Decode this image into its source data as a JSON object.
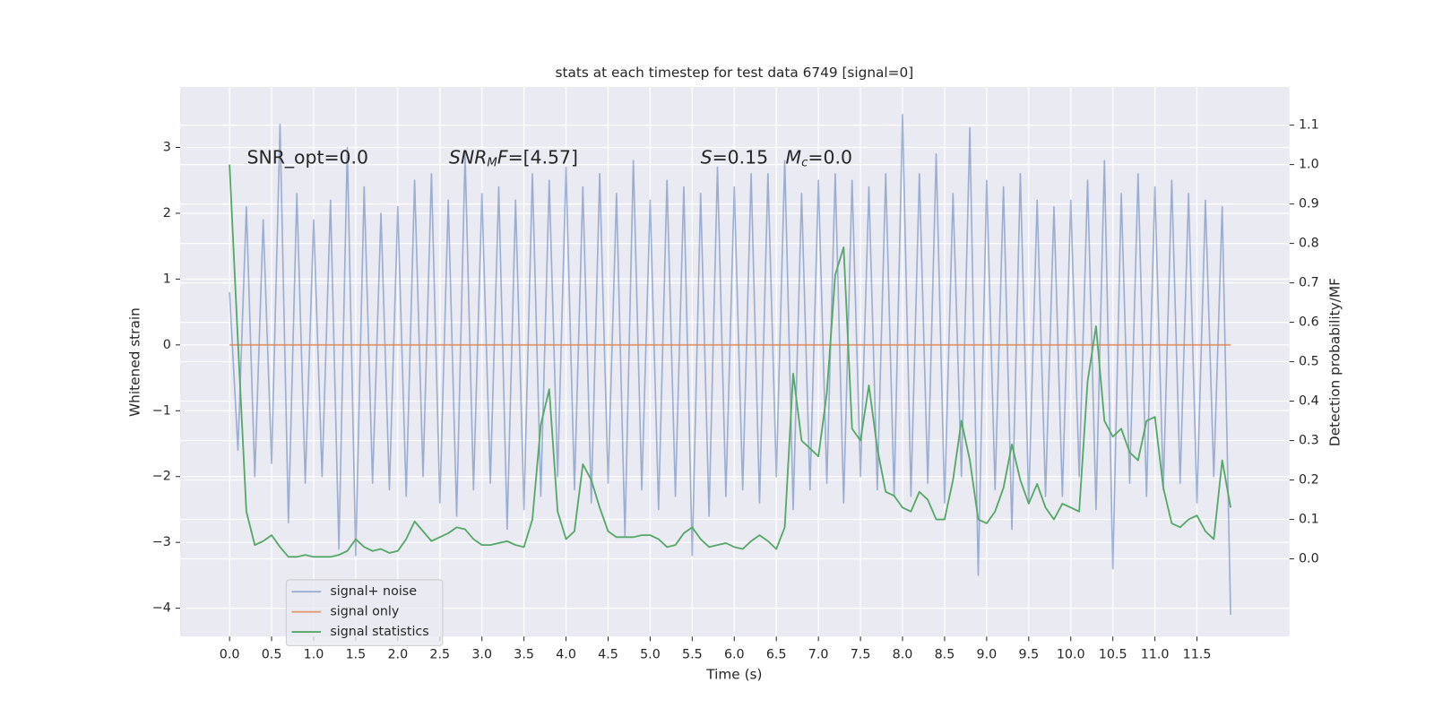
{
  "chart_data": {
    "type": "line",
    "title": "stats at each timestep for test data 6749 [signal=0]",
    "xlabel": "Time (s)",
    "ylabel": "Whitened strain",
    "y2label": "Detection probability/MF",
    "grid": true,
    "legend": "lower left",
    "annotations": [
      [
        {
          "text": "SNR_opt=0.0",
          "style": "normal"
        }
      ],
      [
        {
          "text": "SNR",
          "style": "italic"
        },
        {
          "text": "M",
          "style": "sub"
        },
        {
          "text": "F",
          "style": "italic"
        },
        {
          "text": "=[4.57]",
          "style": "normal"
        }
      ],
      [
        {
          "text": "S",
          "style": "italic"
        },
        {
          "text": "=0.15   ",
          "style": "normal"
        },
        {
          "text": "M",
          "style": "italic"
        },
        {
          "text": "c",
          "style": "sub"
        },
        {
          "text": "=0.0",
          "style": "normal"
        }
      ]
    ],
    "xlim": [
      -0.587,
      12.6
    ],
    "ylim": [
      -4.43,
      3.92
    ],
    "y2lim": [
      -0.197,
      1.197
    ],
    "xticks": [
      {
        "value": 0,
        "label": "0.0"
      },
      {
        "value": 0.5,
        "label": "0.5"
      },
      {
        "value": 1,
        "label": "1.0"
      },
      {
        "value": 1.5,
        "label": "1.5"
      },
      {
        "value": 2,
        "label": "2.0"
      },
      {
        "value": 2.5,
        "label": "2.5"
      },
      {
        "value": 3,
        "label": "3.0"
      },
      {
        "value": 3.5,
        "label": "3.5"
      },
      {
        "value": 4,
        "label": "4.0"
      },
      {
        "value": 4.5,
        "label": "4.5"
      },
      {
        "value": 5,
        "label": "5.0"
      },
      {
        "value": 5.5,
        "label": "5.5"
      },
      {
        "value": 6,
        "label": "6.0"
      },
      {
        "value": 6.5,
        "label": "6.5"
      },
      {
        "value": 7,
        "label": "7.0"
      },
      {
        "value": 7.5,
        "label": "7.5"
      },
      {
        "value": 8,
        "label": "8.0"
      },
      {
        "value": 8.5,
        "label": "8.5"
      },
      {
        "value": 9,
        "label": "9.0"
      },
      {
        "value": 9.5,
        "label": "9.5"
      },
      {
        "value": 10,
        "label": "10.0"
      },
      {
        "value": 10.5,
        "label": "10.5"
      },
      {
        "value": 11,
        "label": "11.0"
      },
      {
        "value": 11.5,
        "label": "11.5"
      }
    ],
    "yticks": [
      {
        "value": -4,
        "label": "−4"
      },
      {
        "value": -3,
        "label": "−3"
      },
      {
        "value": -2,
        "label": "−2"
      },
      {
        "value": -1,
        "label": "−1"
      },
      0,
      1,
      2,
      3
    ],
    "y2ticks": [
      {
        "value": 0,
        "label": "0.0"
      },
      {
        "value": 0.1,
        "label": "0.1"
      },
      {
        "value": 0.2,
        "label": "0.2"
      },
      {
        "value": 0.3,
        "label": "0.3"
      },
      {
        "value": 0.4,
        "label": "0.4"
      },
      {
        "value": 0.5,
        "label": "0.5"
      },
      {
        "value": 0.6,
        "label": "0.6"
      },
      {
        "value": 0.7,
        "label": "0.7"
      },
      {
        "value": 0.8,
        "label": "0.8"
      },
      {
        "value": 0.9,
        "label": "0.9"
      },
      {
        "value": 1,
        "label": "1.0"
      },
      {
        "value": 1.1,
        "label": "1.1"
      }
    ],
    "x": [
      0,
      0.1,
      0.2,
      0.3,
      0.4,
      0.5,
      0.6,
      0.7,
      0.8,
      0.9,
      1,
      1.1,
      1.2,
      1.3,
      1.4,
      1.5,
      1.6,
      1.7,
      1.8,
      1.9,
      2,
      2.1,
      2.2,
      2.3,
      2.4,
      2.5,
      2.6,
      2.7,
      2.8,
      2.9,
      3,
      3.1,
      3.2,
      3.3,
      3.4,
      3.5,
      3.6,
      3.7,
      3.8,
      3.9,
      4,
      4.1,
      4.2,
      4.3,
      4.4,
      4.5,
      4.6,
      4.7,
      4.8,
      4.9,
      5,
      5.1,
      5.2,
      5.3,
      5.4,
      5.5,
      5.6,
      5.7,
      5.8,
      5.9,
      6,
      6.1,
      6.2,
      6.3,
      6.4,
      6.5,
      6.6,
      6.7,
      6.8,
      6.9,
      7,
      7.1,
      7.2,
      7.3,
      7.4,
      7.5,
      7.6,
      7.7,
      7.8,
      7.9,
      8,
      8.1,
      8.2,
      8.3,
      8.4,
      8.5,
      8.6,
      8.7,
      8.8,
      8.9,
      9,
      9.1,
      9.2,
      9.3,
      9.4,
      9.5,
      9.6,
      9.7,
      9.8,
      9.9,
      10,
      10.1,
      10.2,
      10.3,
      10.4,
      10.5,
      10.6,
      10.7,
      10.8,
      10.9,
      11,
      11.1,
      11.2,
      11.3,
      11.4,
      11.5,
      11.6,
      11.7,
      11.8,
      11.9
    ],
    "series": [
      {
        "name": "signal+ noise",
        "color": "#4c72b0",
        "alpha": 0.5,
        "values": [
          0.8,
          -1.6,
          2.1,
          -2.0,
          1.9,
          -1.8,
          3.35,
          -2.7,
          2.3,
          -2.1,
          1.9,
          -2.0,
          2.2,
          -3.1,
          3.0,
          -3.2,
          2.4,
          -2.1,
          2.0,
          -2.2,
          2.1,
          -2.3,
          2.5,
          -2.0,
          2.6,
          -2.4,
          2.2,
          -2.6,
          2.9,
          -2.2,
          2.3,
          -2.1,
          2.4,
          -2.8,
          2.2,
          -2.5,
          2.6,
          -2.3,
          2.5,
          -2.0,
          2.7,
          -2.2,
          2.4,
          -2.4,
          2.6,
          -2.1,
          2.3,
          -2.9,
          2.8,
          -2.2,
          2.2,
          -2.5,
          2.5,
          -2.3,
          2.4,
          -3.2,
          2.3,
          -2.6,
          2.7,
          -2.3,
          2.4,
          -2.2,
          2.6,
          -2.4,
          2.6,
          -2.0,
          2.8,
          -2.5,
          2.3,
          -2.2,
          2.5,
          -2.1,
          2.6,
          -2.4,
          2.5,
          -2.0,
          2.4,
          -2.2,
          2.6,
          -2.3,
          3.5,
          -2.3,
          2.6,
          -2.1,
          2.9,
          -2.4,
          2.3,
          -2.0,
          3.3,
          -3.5,
          2.5,
          -2.2,
          2.4,
          -2.8,
          2.6,
          -2.4,
          2.2,
          -2.3,
          2.1,
          -2.3,
          2.2,
          -2.0,
          2.5,
          -2.5,
          2.8,
          -3.4,
          2.3,
          -2.1,
          2.6,
          -2.3,
          2.4,
          -2.2,
          2.5,
          -2.1,
          2.3,
          -2.4,
          2.2,
          -2.0,
          2.1,
          -4.1
        ]
      },
      {
        "name": "signal only",
        "color": "#dd8452",
        "alpha": 0.8,
        "values": [
          0,
          0,
          0,
          0,
          0,
          0,
          0,
          0,
          0,
          0,
          0,
          0,
          0,
          0,
          0,
          0,
          0,
          0,
          0,
          0,
          0,
          0,
          0,
          0,
          0,
          0,
          0,
          0,
          0,
          0,
          0,
          0,
          0,
          0,
          0,
          0,
          0,
          0,
          0,
          0,
          0,
          0,
          0,
          0,
          0,
          0,
          0,
          0,
          0,
          0,
          0,
          0,
          0,
          0,
          0,
          0,
          0,
          0,
          0,
          0,
          0,
          0,
          0,
          0,
          0,
          0,
          0,
          0,
          0,
          0,
          0,
          0,
          0,
          0,
          0,
          0,
          0,
          0,
          0,
          0,
          0,
          0,
          0,
          0,
          0,
          0,
          0,
          0,
          0,
          0,
          0,
          0,
          0,
          0,
          0,
          0,
          0,
          0,
          0,
          0,
          0,
          0,
          0,
          0,
          0,
          0,
          0,
          0,
          0,
          0,
          0,
          0,
          0,
          0,
          0,
          0,
          0,
          0,
          0,
          0
        ]
      },
      {
        "name": "signal statistics",
        "color": "#55a868",
        "alpha": 1,
        "axis": "y2",
        "values": [
          1.0,
          0.55,
          0.12,
          0.035,
          0.045,
          0.06,
          0.03,
          0.005,
          0.005,
          0.01,
          0.005,
          0.005,
          0.005,
          0.01,
          0.02,
          0.05,
          0.03,
          0.02,
          0.025,
          0.015,
          0.02,
          0.05,
          0.095,
          0.07,
          0.045,
          0.055,
          0.065,
          0.08,
          0.075,
          0.05,
          0.035,
          0.035,
          0.04,
          0.045,
          0.035,
          0.03,
          0.1,
          0.34,
          0.43,
          0.12,
          0.05,
          0.07,
          0.24,
          0.2,
          0.13,
          0.07,
          0.055,
          0.055,
          0.055,
          0.06,
          0.06,
          0.05,
          0.03,
          0.035,
          0.065,
          0.08,
          0.05,
          0.03,
          0.035,
          0.04,
          0.03,
          0.025,
          0.045,
          0.06,
          0.045,
          0.025,
          0.08,
          0.47,
          0.3,
          0.28,
          0.26,
          0.42,
          0.72,
          0.79,
          0.33,
          0.3,
          0.44,
          0.28,
          0.17,
          0.16,
          0.13,
          0.12,
          0.17,
          0.15,
          0.1,
          0.1,
          0.2,
          0.35,
          0.25,
          0.1,
          0.09,
          0.12,
          0.18,
          0.29,
          0.2,
          0.14,
          0.19,
          0.13,
          0.1,
          0.14,
          0.13,
          0.12,
          0.45,
          0.59,
          0.35,
          0.31,
          0.33,
          0.27,
          0.25,
          0.35,
          0.36,
          0.18,
          0.09,
          0.08,
          0.1,
          0.11,
          0.07,
          0.05,
          0.25,
          0.13
        ]
      }
    ]
  }
}
